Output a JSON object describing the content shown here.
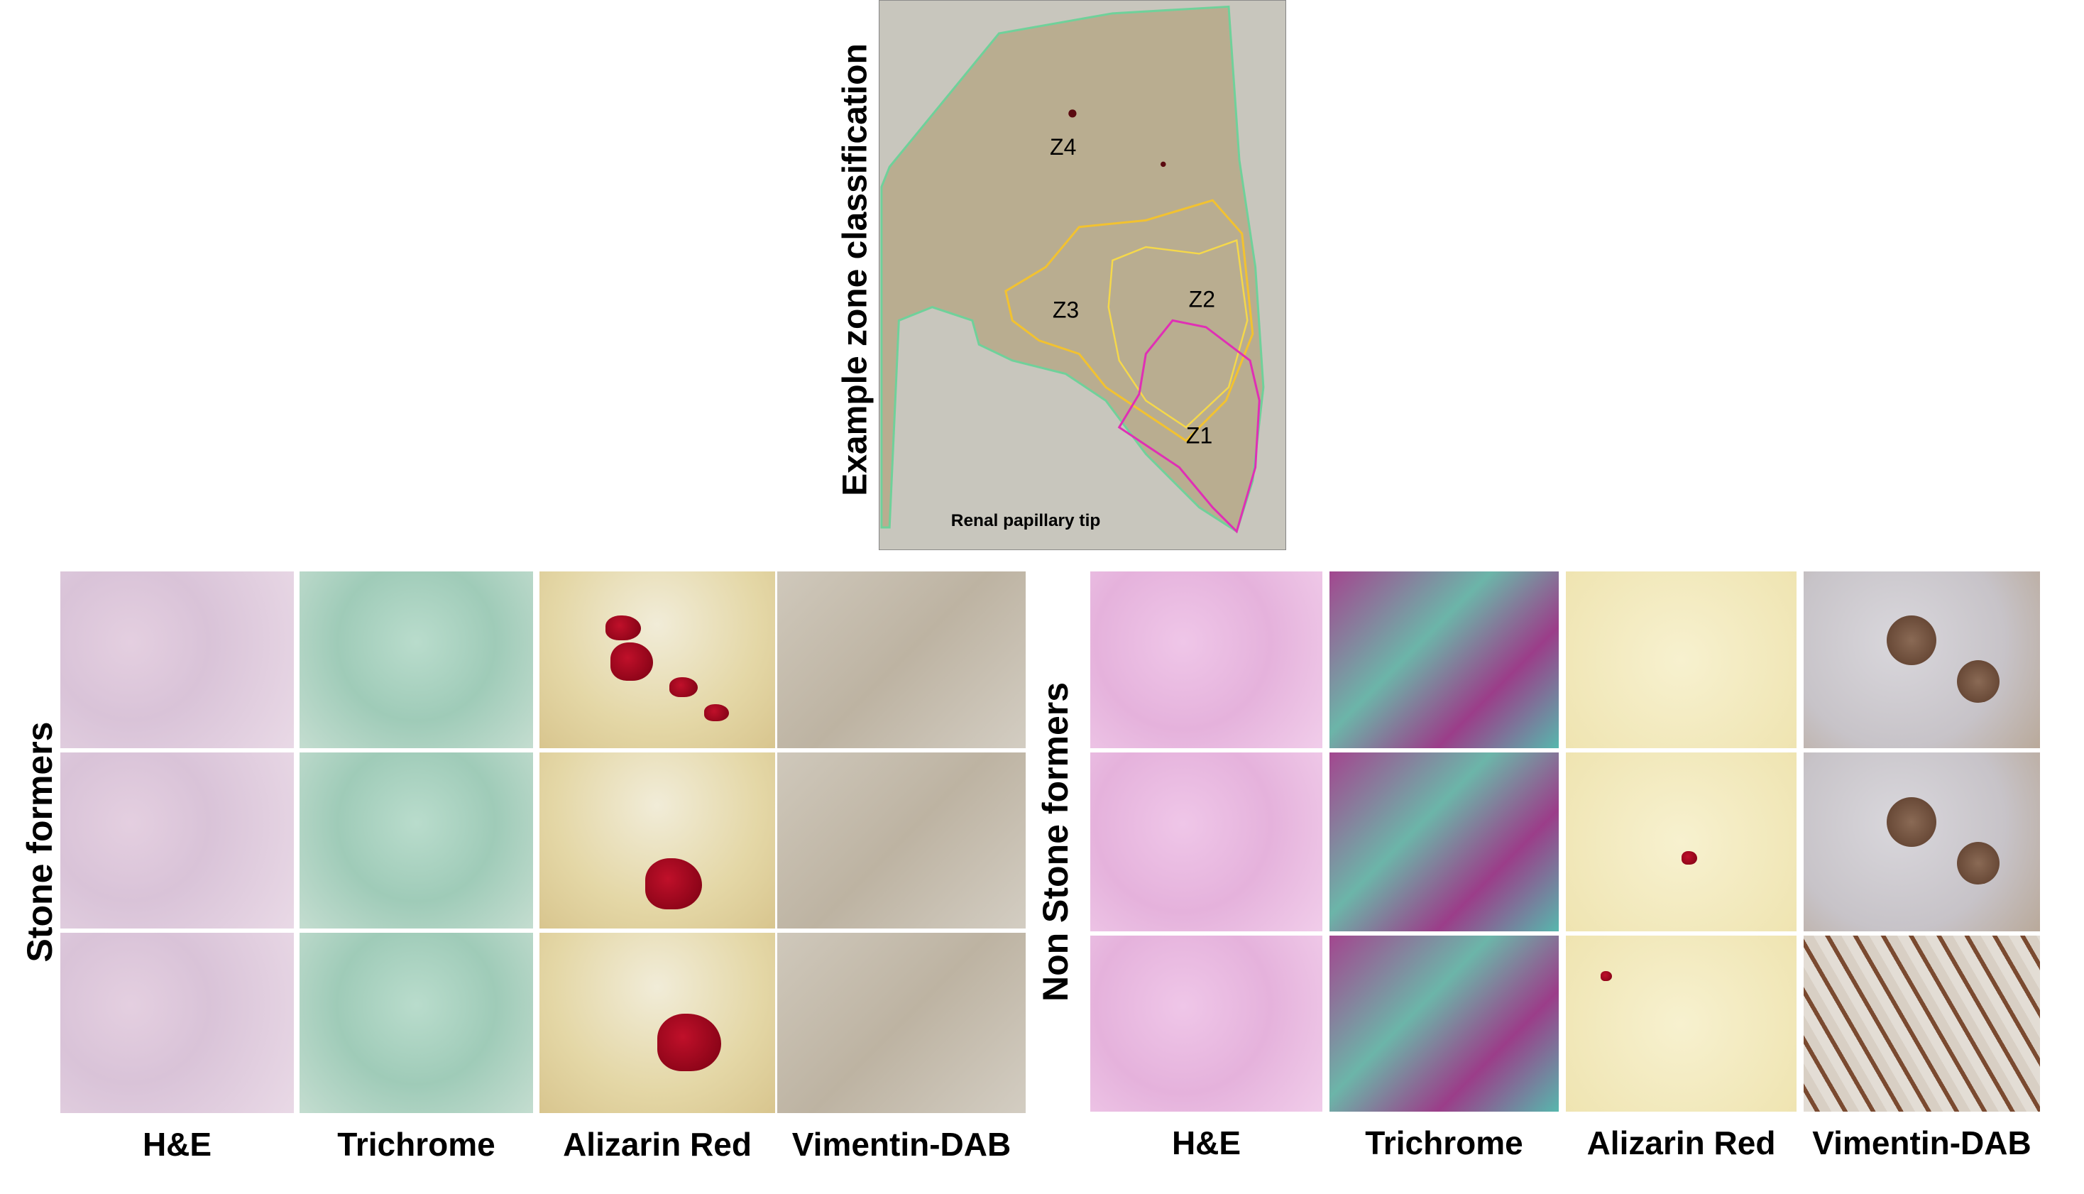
{
  "figure": {
    "zone_image": {
      "title": "Example zone classification",
      "zones": [
        "Z4",
        "Z3",
        "Z2",
        "Z1"
      ],
      "caption": "Renal papillary tip"
    },
    "panels": [
      {
        "label": "Stone formers",
        "columns": [
          "H&E",
          "Trichrome",
          "Alizarin Red",
          "Vimentin-DAB"
        ]
      },
      {
        "label": "Non Stone formers",
        "columns": [
          "H&E",
          "Trichrome",
          "Alizarin Red",
          "Vimentin-DAB"
        ]
      }
    ]
  }
}
